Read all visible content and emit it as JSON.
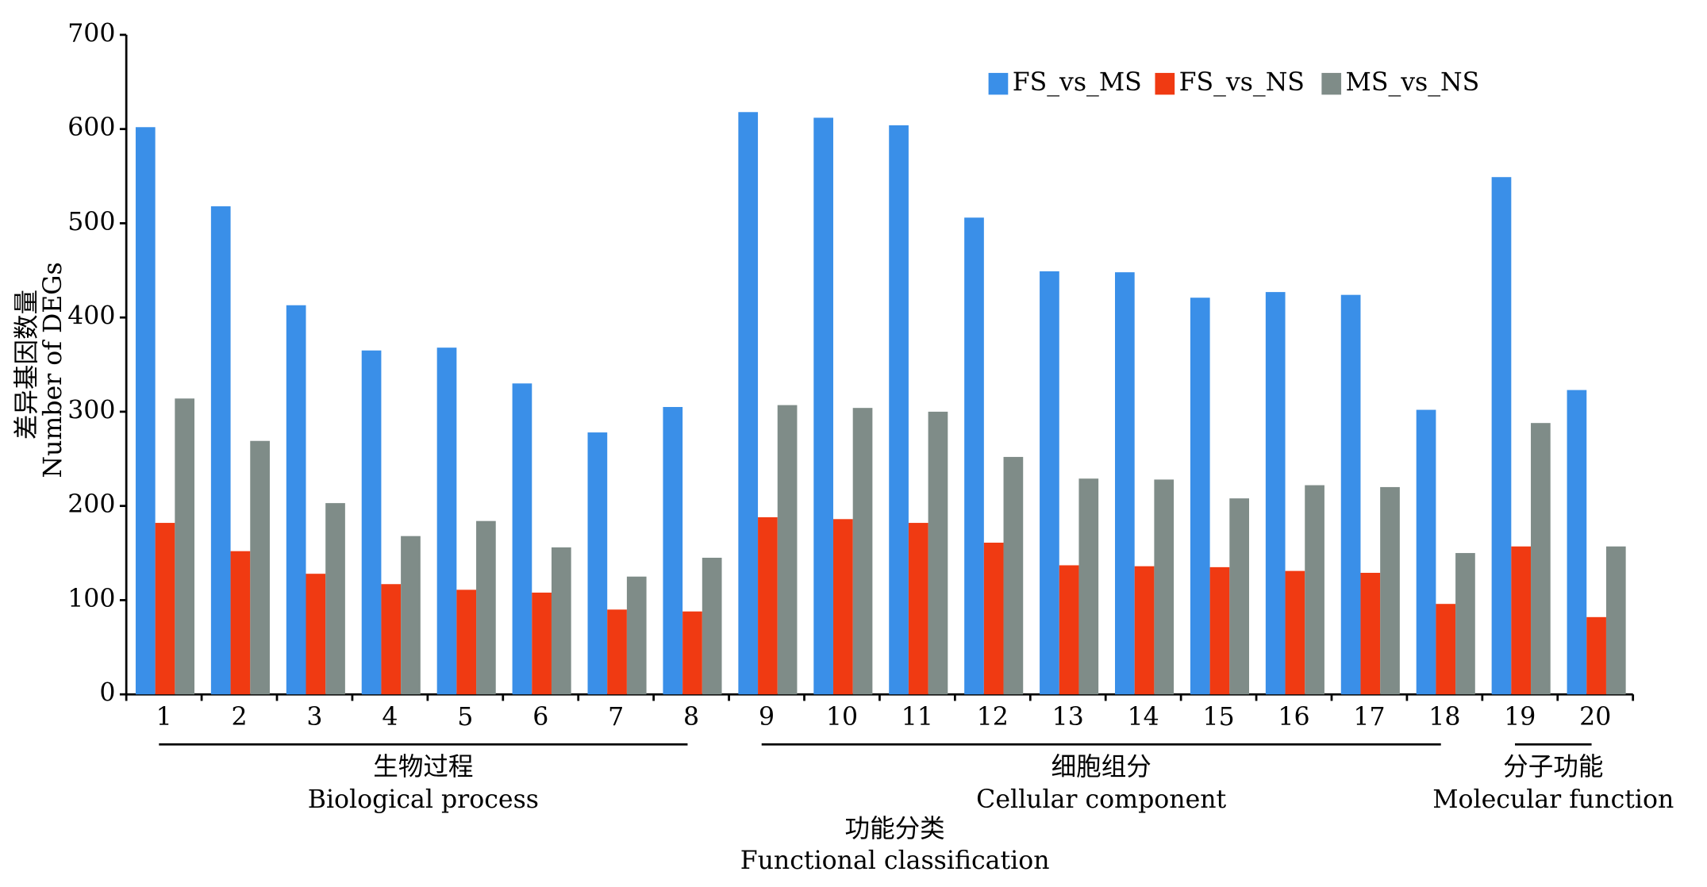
{
  "chart_data": {
    "type": "bar",
    "y_label_cn": "差异基因数量",
    "y_label_en": "Number of DEGs",
    "x_label_cn": "功能分类",
    "x_label_en": "Functional classification",
    "categories": [
      "1",
      "2",
      "3",
      "4",
      "5",
      "6",
      "7",
      "8",
      "9",
      "10",
      "11",
      "12",
      "13",
      "14",
      "15",
      "16",
      "17",
      "18",
      "19",
      "20"
    ],
    "series": [
      {
        "name": "FS_vs_MS",
        "color": "#3a8fe8",
        "values": [
          602,
          518,
          413,
          365,
          368,
          330,
          278,
          305,
          618,
          612,
          604,
          506,
          449,
          448,
          421,
          427,
          424,
          302,
          549,
          323
        ]
      },
      {
        "name": "FS_vs_NS",
        "color": "#f03a12",
        "values": [
          182,
          152,
          128,
          117,
          111,
          108,
          90,
          88,
          188,
          186,
          182,
          161,
          137,
          136,
          135,
          131,
          129,
          96,
          157,
          82
        ]
      },
      {
        "name": "MS_vs_NS",
        "color": "#7f8c88",
        "values": [
          314,
          269,
          203,
          168,
          184,
          156,
          125,
          145,
          307,
          304,
          300,
          252,
          229,
          228,
          208,
          222,
          220,
          150,
          288,
          157
        ]
      }
    ],
    "groups": [
      {
        "name_cn": "生物过程",
        "name_en": "Biological process",
        "size": 8
      },
      {
        "name_cn": "细胞组分",
        "name_en": "Cellular component",
        "size": 10
      },
      {
        "name_cn": "分子功能",
        "name_en": "Molecular function",
        "size": 2
      }
    ],
    "ylim": [
      0,
      700
    ],
    "yticks": [
      0,
      100,
      200,
      300,
      400,
      500,
      600,
      700
    ],
    "legend": "top-right"
  }
}
